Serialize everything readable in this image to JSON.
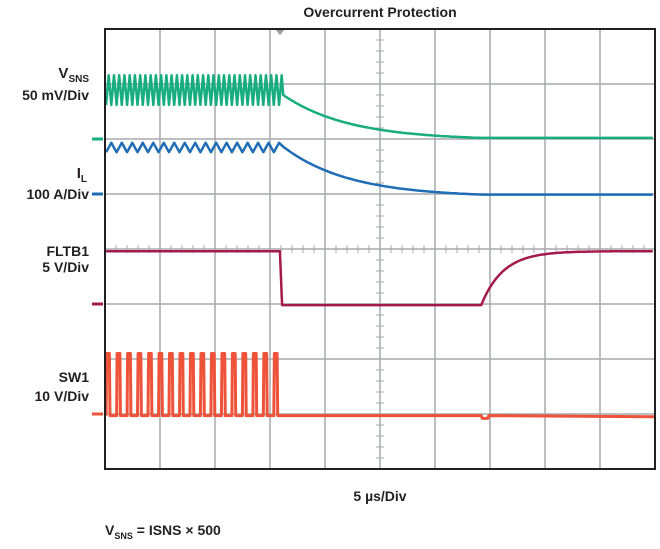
{
  "chart_data": {
    "type": "line",
    "title": "Overcurrent Protection",
    "xlabel": "5 µs/Div",
    "time_per_div_us": 5,
    "x_range_us": [
      0,
      50
    ],
    "divisions": {
      "horizontal": 10,
      "vertical": 8
    },
    "grid": true,
    "footnote": {
      "main": "V",
      "sub": "SNS",
      "rest": " = ISNS × 500"
    },
    "fault_time_us": 16.2,
    "recovery_time_us": 34.2,
    "switching_pulses": 17,
    "series": [
      {
        "name": "VSNS",
        "label_main": "V",
        "label_sub": "SNS",
        "scale": "50 mV/Div",
        "units_per_div": 50,
        "unit": "mV",
        "color": "#17ad7c",
        "ripple_min": 31,
        "ripple_max": 58,
        "post_fault_start": 40,
        "settled": 1,
        "decay_tau_us": 6
      },
      {
        "name": "IL",
        "label_main": "I",
        "label_sub": "L",
        "scale": "100 A/Div",
        "units_per_div": 100,
        "unit": "A",
        "color": "#1f6db5",
        "ripple_min": 76,
        "ripple_max": 93,
        "post_fault_start": 86,
        "settled": -1,
        "decay_tau_us": 6
      },
      {
        "name": "FLTB1",
        "label_main": "FLTB1",
        "label_sub": "",
        "scale": "5 V/Div",
        "units_per_div": 5,
        "unit": "V",
        "color": "#a31a4b",
        "high": 4.8,
        "low": -0.1,
        "rise_tau_us": 2
      },
      {
        "name": "SW1",
        "label_main": "SW1",
        "label_sub": "",
        "scale": "10 V/Div",
        "units_per_div": 10,
        "unit": "V",
        "color": "#ee5239",
        "pulse_high": 11,
        "low": -0.3,
        "glitch": -0.8
      }
    ]
  }
}
